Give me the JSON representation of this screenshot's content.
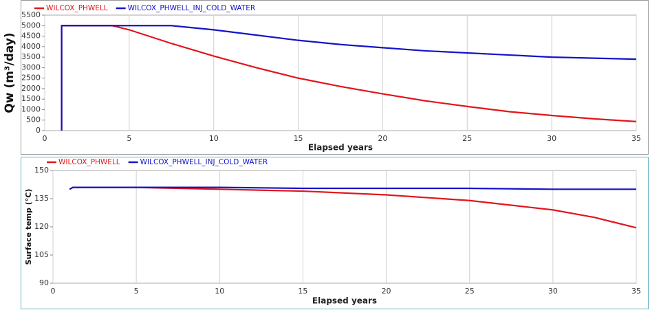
{
  "chart_data": [
    {
      "type": "line",
      "y_label": "Qw (m³/day)",
      "x_label": "Elapsed years",
      "x": [
        1,
        1,
        2,
        4,
        5,
        7.5,
        10,
        12.5,
        15,
        17.5,
        20,
        22.5,
        25,
        27.5,
        30,
        32.5,
        35
      ],
      "series": [
        {
          "name": "WILCOX_PHWELL",
          "color": "#e3151a",
          "values": [
            0,
            5000,
            5000,
            5000,
            4800,
            4150,
            3550,
            3000,
            2500,
            2100,
            1750,
            1420,
            1150,
            900,
            720,
            560,
            430
          ]
        },
        {
          "name": "WILCOX_PHWELL_INJ_COLD_WATER",
          "color": "#1414c8",
          "values": [
            0,
            5000,
            5000,
            5000,
            5000,
            5000,
            4800,
            4550,
            4300,
            4100,
            3950,
            3800,
            3700,
            3600,
            3500,
            3450,
            3400
          ]
        }
      ],
      "xlim": [
        0,
        35
      ],
      "xticks": [
        0,
        5,
        10,
        15,
        20,
        25,
        30,
        35
      ],
      "ylim": [
        0,
        5500
      ],
      "yticks": [
        0,
        500,
        1000,
        1500,
        2000,
        2500,
        3000,
        3500,
        4000,
        4500,
        5000,
        5500
      ],
      "grid": "x"
    },
    {
      "type": "line",
      "y_label": "Surface temp (°C)",
      "x_label": "Elapsed years",
      "x": [
        1,
        1.2,
        2,
        5,
        10,
        15,
        20,
        25,
        30,
        32.5,
        35
      ],
      "series": [
        {
          "name": "WILCOX_PHWELL",
          "color": "#e3151a",
          "values": [
            140,
            141,
            141,
            141,
            140,
            139,
            137,
            134,
            129,
            125,
            119.5
          ]
        },
        {
          "name": "WILCOX_PHWELL_INJ_COLD_WATER",
          "color": "#1414c8",
          "values": [
            140,
            141,
            141,
            141,
            141,
            140.5,
            140.5,
            140.5,
            140,
            140,
            140
          ]
        }
      ],
      "xlim": [
        0,
        35
      ],
      "xticks": [
        0,
        5,
        10,
        15,
        20,
        25,
        30,
        35
      ],
      "ylim": [
        90,
        150
      ],
      "yticks": [
        90,
        105,
        120,
        135,
        150
      ],
      "grid": "x"
    }
  ]
}
